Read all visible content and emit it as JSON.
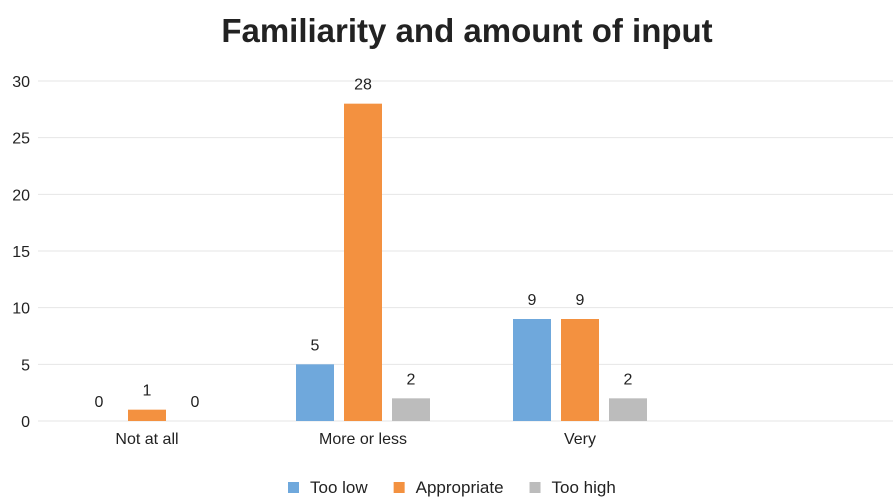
{
  "chart_data": {
    "type": "bar",
    "title": "Familiarity and amount of input",
    "xlabel": "",
    "ylabel": "",
    "categories": [
      "Not at all",
      "More or less",
      "Very"
    ],
    "series": [
      {
        "name": "Too low",
        "values": [
          0,
          5,
          9
        ],
        "color": "#6fa8dc"
      },
      {
        "name": "Appropriate",
        "values": [
          1,
          28,
          9
        ],
        "color": "#f39140"
      },
      {
        "name": "Too high",
        "values": [
          0,
          2,
          2
        ],
        "color": "#bcbcbc"
      }
    ],
    "ylim": [
      0,
      30
    ],
    "yticks": [
      0,
      5,
      10,
      15,
      20,
      25,
      30
    ],
    "grid": true,
    "legend": "bottom"
  }
}
